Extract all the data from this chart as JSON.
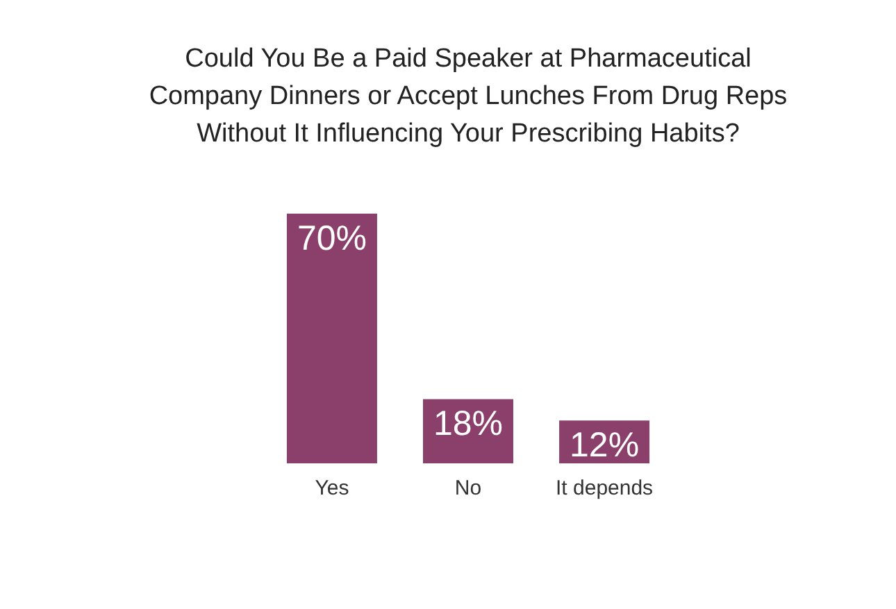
{
  "chart_data": {
    "type": "bar",
    "title": "Could You Be a Paid Speaker at Pharmaceutical\nCompany Dinners or Accept Lunches From Drug Reps\nWithout It Influencing Your Prescribing Habits?",
    "categories": [
      "Yes",
      "No",
      "It depends"
    ],
    "values": [
      70,
      18,
      12
    ],
    "color": "#8b3f6b",
    "value_labels": [
      "70%",
      "18%",
      "12%"
    ]
  }
}
